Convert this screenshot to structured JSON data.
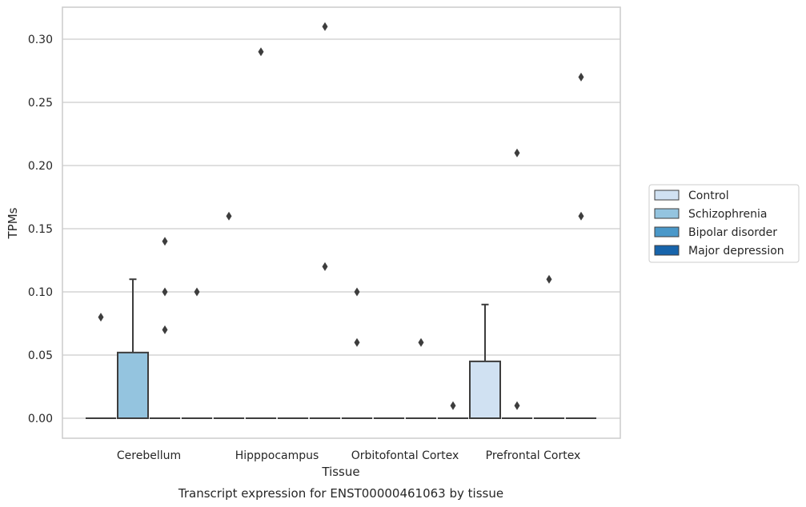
{
  "chart_data": {
    "type": "box",
    "caption": "Transcript expression for ENST00000461063 by tissue",
    "xlabel": "Tissue",
    "ylabel": "TPMs",
    "ylim": [
      -0.015,
      0.326
    ],
    "yticks": [
      0.0,
      0.05,
      0.1,
      0.15,
      0.2,
      0.25,
      0.3
    ],
    "ytick_labels": [
      "0.00",
      "0.05",
      "0.10",
      "0.15",
      "0.20",
      "0.25",
      "0.30"
    ],
    "grid": true,
    "legend_placement": "outside-right",
    "categories": [
      "Cerebellum",
      "Hipppocampus",
      "Orbitofontal Cortex",
      "Prefrontal Cortex"
    ],
    "series": [
      {
        "name": "Control",
        "color": "#d0e1f2",
        "boxes": [
          {
            "q1": 0,
            "median": 0,
            "q3": 0,
            "whisker_low": 0,
            "whisker_high": 0,
            "outliers": [
              0.08
            ]
          },
          {
            "q1": 0,
            "median": 0,
            "q3": 0,
            "whisker_low": 0,
            "whisker_high": 0,
            "outliers": [
              0.16
            ]
          },
          {
            "q1": 0,
            "median": 0,
            "q3": 0,
            "whisker_low": 0,
            "whisker_high": 0,
            "outliers": [
              0.1,
              0.06
            ]
          },
          {
            "q1": 0,
            "median": 0,
            "q3": 0.045,
            "whisker_low": 0,
            "whisker_high": 0.09,
            "outliers": []
          }
        ]
      },
      {
        "name": "Schizophrenia",
        "color": "#94c4df",
        "boxes": [
          {
            "q1": 0,
            "median": 0,
            "q3": 0.052,
            "whisker_low": 0,
            "whisker_high": 0.11,
            "outliers": []
          },
          {
            "q1": 0,
            "median": 0,
            "q3": 0,
            "whisker_low": 0,
            "whisker_high": 0,
            "outliers": [
              0.29
            ]
          },
          {
            "q1": 0,
            "median": 0,
            "q3": 0,
            "whisker_low": 0,
            "whisker_high": 0,
            "outliers": []
          },
          {
            "q1": 0,
            "median": 0,
            "q3": 0,
            "whisker_low": 0,
            "whisker_high": 0,
            "outliers": [
              0.21,
              0.01
            ]
          }
        ]
      },
      {
        "name": "Bipolar disorder",
        "color": "#4a98c9",
        "boxes": [
          {
            "q1": 0,
            "median": 0,
            "q3": 0,
            "whisker_low": 0,
            "whisker_high": 0,
            "outliers": [
              0.14,
              0.1,
              0.07
            ]
          },
          {
            "q1": 0,
            "median": 0,
            "q3": 0,
            "whisker_low": 0,
            "whisker_high": 0,
            "outliers": []
          },
          {
            "q1": 0,
            "median": 0,
            "q3": 0,
            "whisker_low": 0,
            "whisker_high": 0,
            "outliers": [
              0.06
            ]
          },
          {
            "q1": 0,
            "median": 0,
            "q3": 0,
            "whisker_low": 0,
            "whisker_high": 0,
            "outliers": [
              0.11
            ]
          }
        ]
      },
      {
        "name": "Major depression",
        "color": "#1764ab",
        "boxes": [
          {
            "q1": 0,
            "median": 0,
            "q3": 0,
            "whisker_low": 0,
            "whisker_high": 0,
            "outliers": [
              0.1
            ]
          },
          {
            "q1": 0,
            "median": 0,
            "q3": 0,
            "whisker_low": 0,
            "whisker_high": 0,
            "outliers": [
              0.31,
              0.12
            ]
          },
          {
            "q1": 0,
            "median": 0,
            "q3": 0,
            "whisker_low": 0,
            "whisker_high": 0,
            "outliers": [
              0.01
            ]
          },
          {
            "q1": 0,
            "median": 0,
            "q3": 0,
            "whisker_low": 0,
            "whisker_high": 0,
            "outliers": [
              0.27,
              0.16
            ]
          }
        ]
      }
    ]
  }
}
